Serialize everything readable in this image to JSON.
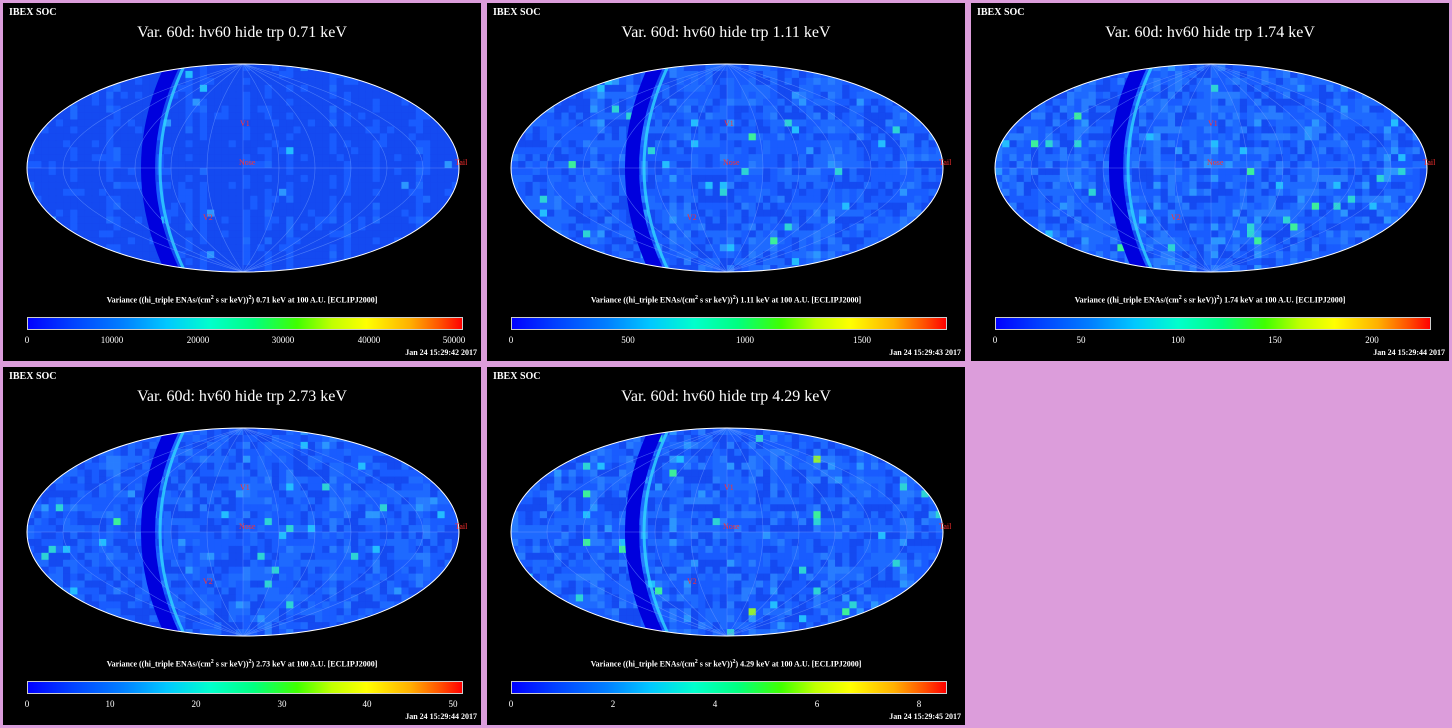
{
  "panels": [
    {
      "header": "IBEX SOC",
      "title": "Var. 60d: hv60 hide trp 0.71 keV",
      "colorbar_label_pre": "Variance ((hi_triple ENAs/(cm",
      "colorbar_label_sup1": "2",
      "colorbar_label_mid": " s sr keV))",
      "colorbar_label_sup2": "2",
      "colorbar_label_post": ") 0.71 keV at 100 A.U. [ECLIPJ2000]",
      "ticks": [
        "0",
        "10000",
        "20000",
        "30000",
        "40000",
        "50000"
      ],
      "timestamp": "Jan 24 15:29:42 2017",
      "map_labels": {
        "nose": "Nose",
        "tail": "Tail",
        "v1": "V1",
        "v2": "V2"
      }
    },
    {
      "header": "IBEX SOC",
      "title": "Var. 60d: hv60 hide trp 1.11 keV",
      "colorbar_label_pre": "Variance ((hi_triple ENAs/(cm",
      "colorbar_label_sup1": "2",
      "colorbar_label_mid": " s sr keV))",
      "colorbar_label_sup2": "2",
      "colorbar_label_post": ") 1.11 keV at 100 A.U. [ECLIPJ2000]",
      "ticks": [
        "0",
        "500",
        "1000",
        "1500"
      ],
      "timestamp": "Jan 24 15:29:43 2017",
      "map_labels": {
        "nose": "Nose",
        "tail": "Tail",
        "v1": "V1",
        "v2": "V2"
      }
    },
    {
      "header": "IBEX SOC",
      "title": "Var. 60d: hv60 hide trp 1.74 keV",
      "colorbar_label_pre": "Variance ((hi_triple ENAs/(cm",
      "colorbar_label_sup1": "2",
      "colorbar_label_mid": " s sr keV))",
      "colorbar_label_sup2": "2",
      "colorbar_label_post": ") 1.74 keV at 100 A.U. [ECLIPJ2000]",
      "ticks": [
        "0",
        "50",
        "100",
        "150",
        "200"
      ],
      "timestamp": "Jan 24 15:29:44 2017",
      "map_labels": {
        "nose": "Nose",
        "tail": "Tail",
        "v1": "V1",
        "v2": "V2"
      }
    },
    {
      "header": "IBEX SOC",
      "title": "Var. 60d: hv60 hide trp 2.73 keV",
      "colorbar_label_pre": "Variance ((hi_triple ENAs/(cm",
      "colorbar_label_sup1": "2",
      "colorbar_label_mid": " s sr keV))",
      "colorbar_label_sup2": "2",
      "colorbar_label_post": ") 2.73 keV at 100 A.U. [ECLIPJ2000]",
      "ticks": [
        "0",
        "10",
        "20",
        "30",
        "40",
        "50"
      ],
      "timestamp": "Jan 24 15:29:44 2017",
      "map_labels": {
        "nose": "Nose",
        "tail": "Tail",
        "v1": "V1",
        "v2": "V2"
      }
    },
    {
      "header": "IBEX SOC",
      "title": "Var. 60d: hv60 hide trp 4.29 keV",
      "colorbar_label_pre": "Variance ((hi_triple ENAs/(cm",
      "colorbar_label_sup1": "2",
      "colorbar_label_mid": " s sr keV))",
      "colorbar_label_sup2": "2",
      "colorbar_label_post": ") 4.29 keV at 100 A.U. [ECLIPJ2000]",
      "ticks": [
        "0",
        "2",
        "4",
        "6",
        "8"
      ],
      "timestamp": "Jan 24 15:29:45 2017",
      "map_labels": {
        "nose": "Nose",
        "tail": "Tail",
        "v1": "V1",
        "v2": "V2"
      }
    }
  ],
  "colors": {
    "background": "#dc9ddb",
    "panel": "#000000",
    "map_base": "#1a5cff",
    "label_red": "#ff3030"
  }
}
